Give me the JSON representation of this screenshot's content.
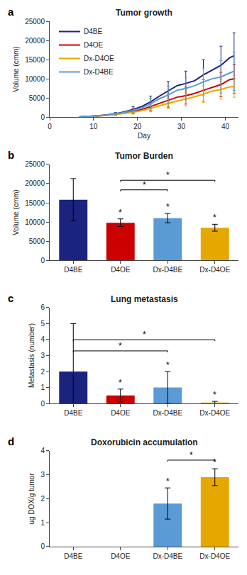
{
  "chart_data": [
    {
      "type": "line",
      "title": "Tumor growth",
      "xlabel": "Day",
      "ylabel": "Volume (cmm)",
      "x": [
        7,
        9,
        11,
        13,
        15,
        17,
        19,
        21,
        23,
        25,
        27,
        29,
        31,
        33,
        35,
        37,
        39,
        41,
        42
      ],
      "series": [
        {
          "name": "D4BE",
          "color": "#1a237e",
          "values": [
            80,
            150,
            350,
            600,
            900,
            1400,
            2000,
            2800,
            4000,
            5500,
            6800,
            8200,
            8800,
            9500,
            11000,
            12200,
            13500,
            15500,
            16000
          ],
          "errors": [
            30,
            null,
            120,
            null,
            350,
            null,
            700,
            null,
            1500,
            null,
            2500,
            null,
            3200,
            null,
            4000,
            null,
            5000,
            null,
            6000
          ]
        },
        {
          "name": "D4OE",
          "color": "#cc0000",
          "values": [
            70,
            130,
            300,
            520,
            750,
            1100,
            1500,
            2000,
            2800,
            3600,
            4300,
            5200,
            5600,
            6200,
            7000,
            7800,
            8500,
            9800,
            10000
          ],
          "errors": [
            25,
            null,
            100,
            null,
            280,
            null,
            600,
            null,
            1100,
            null,
            1700,
            null,
            2200,
            null,
            2800,
            null,
            3200,
            null,
            3800
          ]
        },
        {
          "name": "Dx-D4OE",
          "color": "#e6a800",
          "values": [
            60,
            110,
            260,
            450,
            650,
            950,
            1300,
            1700,
            2300,
            3000,
            3600,
            4200,
            4700,
            5300,
            6000,
            6800,
            7200,
            7900,
            8000
          ],
          "errors": [
            20,
            null,
            90,
            null,
            230,
            null,
            500,
            null,
            900,
            null,
            1400,
            null,
            1800,
            null,
            2200,
            null,
            2500,
            null,
            2800
          ]
        },
        {
          "name": "Dx-D4BE",
          "color": "#5b9bd5",
          "values": [
            75,
            140,
            320,
            560,
            820,
            1250,
            1750,
            2400,
            3500,
            4800,
            5800,
            7000,
            7500,
            8200,
            9200,
            10000,
            10500,
            11500,
            12000
          ],
          "errors": [
            28,
            null,
            110,
            null,
            320,
            null,
            650,
            null,
            1400,
            null,
            2300,
            null,
            2900,
            null,
            3600,
            null,
            4200,
            null,
            5000
          ]
        }
      ],
      "xlim": [
        0,
        43
      ],
      "xticks": [
        0,
        10,
        20,
        30,
        40
      ],
      "ylim": [
        0,
        25000
      ],
      "yticks": [
        0,
        5000,
        10000,
        15000,
        20000,
        25000
      ],
      "legend": "upper left",
      "grid": false,
      "annotations": [
        {
          "text": "a"
        }
      ]
    },
    {
      "type": "bar",
      "title": "Tumor Burden",
      "ylabel": "Volume (cmm)",
      "categories": [
        "D4BE",
        "D4OE",
        "Dx-D4BE",
        "Dx-D4OE"
      ],
      "values": [
        15800,
        9800,
        11000,
        8500
      ],
      "errors": [
        5500,
        1000,
        1200,
        900
      ],
      "colors": [
        "#1a237e",
        "#cc0000",
        "#5b9bd5",
        "#e6a800"
      ],
      "ylim": [
        0,
        25000
      ],
      "yticks": [
        0,
        5000,
        10000,
        15000,
        20000,
        25000
      ],
      "grid": false,
      "annotations": [
        {
          "text": "b"
        },
        {
          "text": "*",
          "x": "D4OE"
        },
        {
          "text": "*",
          "x": "Dx-D4BE"
        },
        {
          "text": "*",
          "x": "Dx-D4OE"
        },
        {
          "text": "*",
          "x1": "D4OE",
          "x2": "Dx-D4OE",
          "y": 20500
        },
        {
          "text": "*",
          "x1": "D4OE",
          "x2": "Dx-D4BE",
          "y": 18000
        }
      ]
    },
    {
      "type": "bar",
      "title": "Lung metastasis",
      "ylabel": "Metastasis (number)",
      "categories": [
        "D4BE",
        "D4OE",
        "Dx-D4BE",
        "Dx-D4OE"
      ],
      "values": [
        2.0,
        0.5,
        1.0,
        0.05
      ],
      "errors": [
        3.0,
        0.4,
        1.0,
        0.08
      ],
      "colors": [
        "#1a237e",
        "#cc0000",
        "#5b9bd5",
        "#e6a800"
      ],
      "ylim": [
        0,
        6
      ],
      "yticks": [
        0,
        1,
        2,
        3,
        4,
        5,
        6
      ],
      "grid": false,
      "annotations": [
        {
          "text": "c"
        },
        {
          "text": "*",
          "x": "D4OE"
        },
        {
          "text": "*",
          "x": "Dx-D4BE"
        },
        {
          "text": "*",
          "x": "Dx-D4OE"
        },
        {
          "text": "*",
          "x1": "D4BE",
          "x2": "Dx-D4OE",
          "y": 3.9
        },
        {
          "text": "*",
          "x1": "D4BE",
          "x2": "Dx-D4BE",
          "y": 3.2
        }
      ]
    },
    {
      "type": "bar",
      "title": "Doxorubicin accumulation",
      "ylabel": "ug DOX/g tumor",
      "categories": [
        "D4BE",
        "D4OE",
        "Dx-D4BE",
        "Dx-D4OE"
      ],
      "values": [
        0.0,
        0.0,
        1.8,
        2.9
      ],
      "errors": [
        0.0,
        0.0,
        0.65,
        0.35
      ],
      "colors": [
        "#1a237e",
        "#cc0000",
        "#5b9bd5",
        "#e6a800"
      ],
      "ylim": [
        0,
        4
      ],
      "yticks": [
        0,
        1,
        2,
        3,
        4
      ],
      "grid": false,
      "annotations": [
        {
          "text": "d"
        },
        {
          "text": "*",
          "x": "Dx-D4BE"
        },
        {
          "text": "*",
          "x": "Dx-D4OE"
        },
        {
          "text": "*",
          "x1": "Dx-D4BE",
          "x2": "Dx-D4OE",
          "y": 3.55
        }
      ]
    }
  ]
}
